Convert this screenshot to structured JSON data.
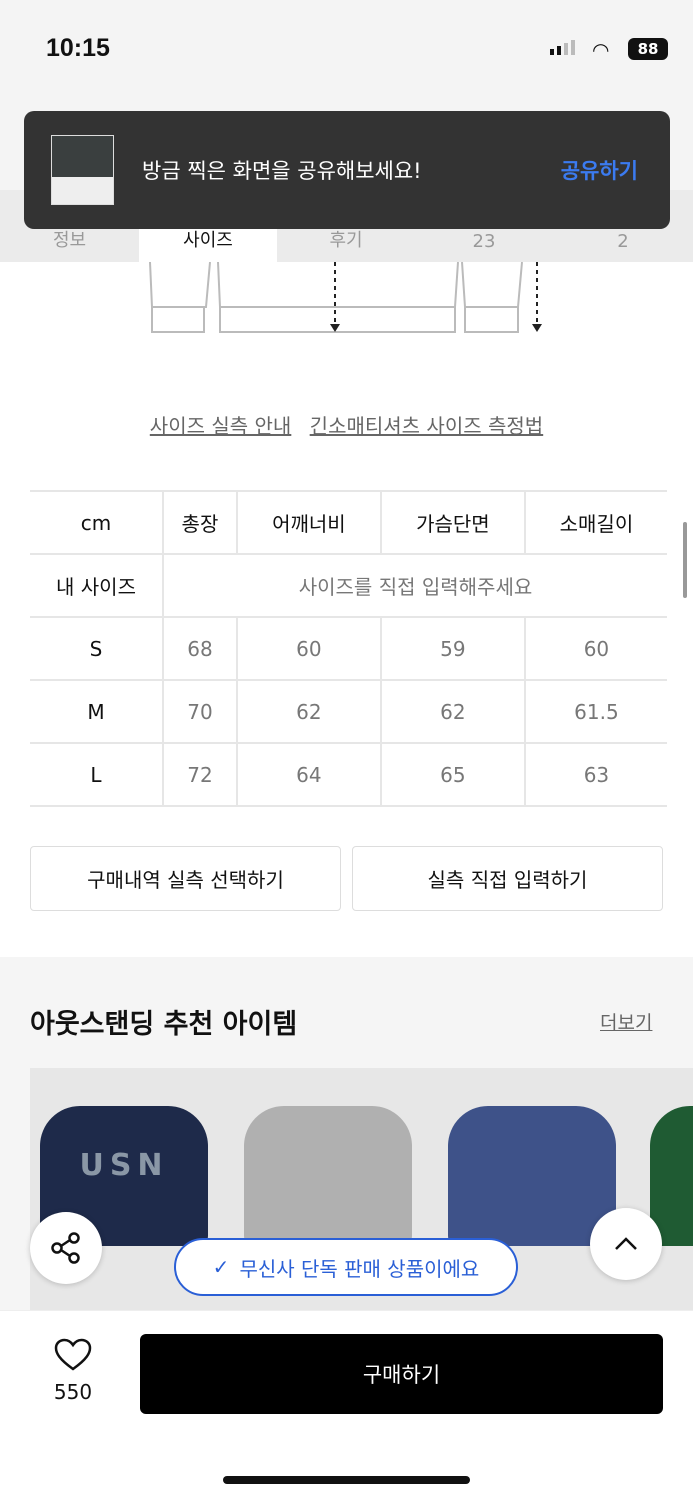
{
  "status": {
    "time": "10:15",
    "battery": "88"
  },
  "tabs": [
    {
      "label": "정보"
    },
    {
      "label": "사이즈"
    },
    {
      "label": "후기"
    },
    {
      "label": "23"
    },
    {
      "label": "2"
    }
  ],
  "toast": {
    "message": "방금 찍은 화면을 공유해보세요!",
    "action": "공유하기"
  },
  "size_links": [
    "사이즈 실측 안내",
    "긴소매티셔츠 사이즈 측정법"
  ],
  "size_table": {
    "headers": [
      "cm",
      "총장",
      "어깨너비",
      "가슴단면",
      "소매길이"
    ],
    "my_size": {
      "label": "내 사이즈",
      "placeholder": "사이즈를 직접 입력해주세요"
    },
    "rows": [
      [
        "S",
        "68",
        "60",
        "59",
        "60"
      ],
      [
        "M",
        "70",
        "62",
        "62",
        "61.5"
      ],
      [
        "L",
        "72",
        "64",
        "65",
        "63"
      ]
    ]
  },
  "buttons": {
    "purchase_history": "구매내역 실측 선택하기",
    "manual_input": "실측 직접 입력하기"
  },
  "recommend": {
    "title": "아웃스탠딩 추천 아이템",
    "more": "더보기"
  },
  "exclusive_badge": "무신사 단독 판매 상품이에요",
  "bottom": {
    "likes": "550",
    "buy": "구매하기"
  },
  "colors": {
    "accent": "#2a5fd6",
    "toast_action": "#3b7bf0"
  }
}
